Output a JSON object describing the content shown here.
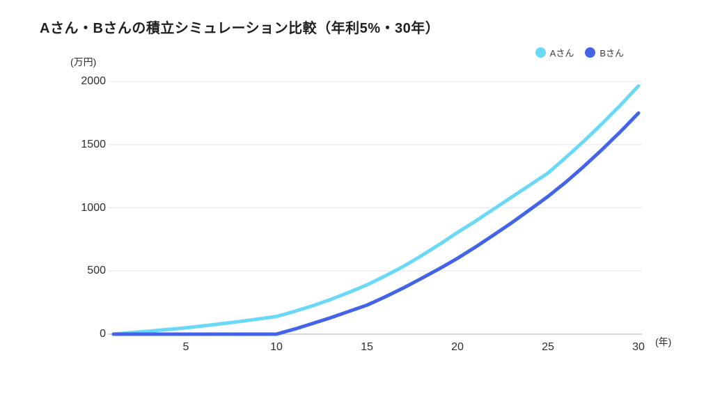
{
  "chart_data": {
    "type": "line",
    "title": "Aさん・Bさんの積立シミュレーション比較（年利5%・30年）",
    "y_axis_unit": "(万円)",
    "x_axis_unit": "(年)",
    "xlabel": "年",
    "ylabel": "万円",
    "xlim": [
      1,
      30
    ],
    "ylim": [
      0,
      2000
    ],
    "x_ticks": [
      5,
      10,
      15,
      20,
      25,
      30
    ],
    "y_ticks": [
      0,
      500,
      1000,
      1500,
      2000
    ],
    "grid": "horizontal",
    "legend_position": "top-right",
    "x": [
      1,
      2,
      3,
      4,
      5,
      6,
      7,
      8,
      9,
      10,
      11,
      12,
      13,
      14,
      15,
      16,
      17,
      18,
      19,
      20,
      21,
      22,
      23,
      24,
      25,
      26,
      27,
      28,
      29,
      30
    ],
    "series": [
      {
        "name": "Aさん",
        "color": "#69d9f7",
        "values": [
          0,
          12,
          24,
          37,
          50,
          66,
          83,
          101,
          120,
          140,
          180,
          225,
          275,
          330,
          390,
          460,
          535,
          620,
          710,
          805,
          895,
          990,
          1085,
          1180,
          1275,
          1400,
          1530,
          1668,
          1812,
          1965
        ]
      },
      {
        "name": "Bさん",
        "color": "#4464e8",
        "values": [
          0,
          0,
          0,
          0,
          0,
          0,
          0,
          0,
          0,
          0,
          40,
          85,
          130,
          180,
          230,
          295,
          365,
          440,
          518,
          600,
          690,
          785,
          882,
          985,
          1090,
          1205,
          1330,
          1462,
          1602,
          1750
        ]
      }
    ],
    "colors": {
      "series_a": "#69d9f7",
      "series_b": "#4464e8",
      "gridline": "#e9e9eb",
      "baseline": "#c6c8cc",
      "title_text": "#1f1f1f",
      "tick_text": "#2e2e2e",
      "background": "#ffffff"
    }
  }
}
